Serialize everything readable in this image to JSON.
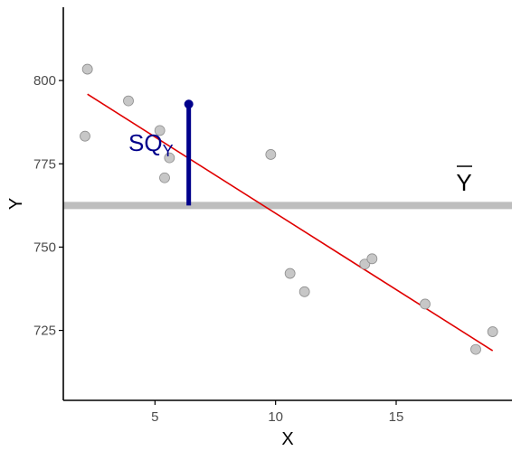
{
  "chart_data": {
    "type": "scatter",
    "title": "",
    "xlabel": "X",
    "ylabel": "Y",
    "xlim": [
      1.2,
      19.8
    ],
    "ylim": [
      704,
      822
    ],
    "x_ticks": [
      5,
      10,
      15
    ],
    "x_tick_labels": [
      "5",
      "10",
      "15"
    ],
    "y_ticks": [
      725,
      750,
      775,
      800
    ],
    "y_tick_labels": [
      "725",
      "750",
      "775",
      "800"
    ],
    "grid": false,
    "legend": "none",
    "points": [
      {
        "x": 2.1,
        "y": 783.3
      },
      {
        "x": 2.2,
        "y": 803.4
      },
      {
        "x": 3.9,
        "y": 793.9
      },
      {
        "x": 5.2,
        "y": 785.0
      },
      {
        "x": 5.4,
        "y": 770.8
      },
      {
        "x": 5.6,
        "y": 776.8
      },
      {
        "x": 9.8,
        "y": 777.8
      },
      {
        "x": 10.6,
        "y": 742.1
      },
      {
        "x": 11.2,
        "y": 736.6
      },
      {
        "x": 13.7,
        "y": 744.9
      },
      {
        "x": 14.0,
        "y": 746.5
      },
      {
        "x": 16.2,
        "y": 732.9
      },
      {
        "x": 18.3,
        "y": 719.3
      },
      {
        "x": 19.0,
        "y": 724.6
      }
    ],
    "regression_line": {
      "x": [
        2.2,
        19.0
      ],
      "y": [
        795.9,
        718.9
      ]
    },
    "mean_y": 762.5,
    "highlight_point": {
      "x": 6.4,
      "y": 792.9
    },
    "deviation_segment": {
      "x": 6.4,
      "y_from": 762.5,
      "y_to": 792.9
    },
    "annotations": {
      "sq_main": "SQ",
      "sq_sub": "Y",
      "mean_label": "Y"
    },
    "colors": {
      "points_fill": "#c7c7c7",
      "points_stroke": "#8f8f8f",
      "regression": "#e00000",
      "mean_line": "#bebebe",
      "deviation": "#00008b",
      "annotation_text": "#00008b",
      "axis": "#000000",
      "tick_text": "#4d4d4d"
    }
  }
}
